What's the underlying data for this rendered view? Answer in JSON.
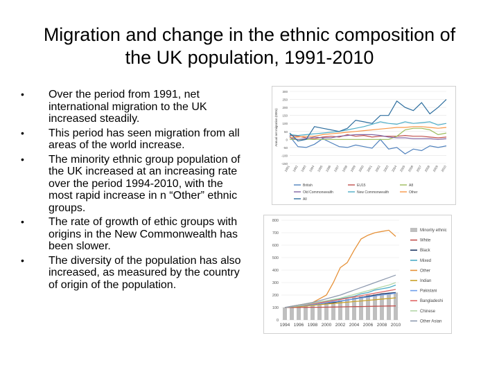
{
  "slide": {
    "title_line1": "Migration and change in the ethnic composition of",
    "title_line2": "the UK population, 1991-2010",
    "bullets": [
      "Over the period from 1991, net international migration to the UK increased steadily.",
      "This period has seen migration from all areas of the world increase.",
      "The minority ethnic group population of the UK increased at an increasing rate over the period 1994-2010, with the most rapid increase in n “Other” ethnic groups.",
      "The rate of growth of ethic groups with origins in the New Commonwealth has been slower.",
      "The diversity of the population has also increased, as measured by the country of origin of the population."
    ],
    "bullet_symbol": "•"
  },
  "chart_data": [
    {
      "type": "line",
      "title": "",
      "xlabel": "",
      "ylabel": "Annual net migration (000s)",
      "x": [
        "1991",
        "1992",
        "1993",
        "1994",
        "1995",
        "1996",
        "1997",
        "1998",
        "1999",
        "2000",
        "2001",
        "2002",
        "2003",
        "2004",
        "2005",
        "2006",
        "2007",
        "2008",
        "2009",
        "2010"
      ],
      "yticks": [
        "300",
        "250",
        "200",
        "150",
        "100",
        "50",
        "0",
        "-50",
        "-100",
        "-150"
      ],
      "ylim": [
        -150,
        300
      ],
      "grid": "horizontal",
      "legend_position": "bottom",
      "series": [
        {
          "name": "British",
          "color": "#4f81bd",
          "values": [
            20,
            -45,
            -50,
            -30,
            5,
            -20,
            -45,
            -50,
            -35,
            -45,
            -55,
            0,
            -60,
            -50,
            -90,
            -60,
            -70,
            -40,
            -50,
            -40
          ]
        },
        {
          "name": "EU15",
          "color": "#c0504d",
          "values": [
            25,
            20,
            10,
            5,
            15,
            20,
            15,
            30,
            20,
            25,
            15,
            20,
            20,
            20,
            25,
            20,
            20,
            15,
            10,
            15
          ]
        },
        {
          "name": "A8",
          "color": "#9bbb59",
          "values": [
            0,
            0,
            0,
            0,
            0,
            0,
            0,
            0,
            0,
            0,
            0,
            0,
            0,
            20,
            60,
            70,
            70,
            60,
            30,
            40
          ]
        },
        {
          "name": "Old Commonwealth",
          "color": "#8064a2",
          "values": [
            10,
            0,
            5,
            15,
            10,
            10,
            20,
            25,
            30,
            30,
            30,
            25,
            15,
            10,
            10,
            5,
            5,
            5,
            0,
            5
          ]
        },
        {
          "name": "New Commonwealth",
          "color": "#4bacc6",
          "values": [
            30,
            25,
            30,
            35,
            40,
            45,
            50,
            60,
            70,
            80,
            95,
            110,
            100,
            95,
            110,
            100,
            105,
            110,
            90,
            100
          ]
        },
        {
          "name": "Other",
          "color": "#f79646",
          "values": [
            10,
            15,
            20,
            20,
            30,
            35,
            40,
            45,
            50,
            55,
            60,
            65,
            70,
            75,
            75,
            80,
            80,
            75,
            70,
            75
          ]
        },
        {
          "name": "All",
          "color": "#2c6d9e",
          "values": [
            40,
            -10,
            0,
            80,
            70,
            60,
            50,
            70,
            120,
            110,
            100,
            150,
            150,
            240,
            200,
            180,
            230,
            160,
            200,
            250
          ]
        }
      ]
    },
    {
      "type": "line",
      "title": "",
      "xlabel": "",
      "ylabel": "",
      "x": [
        "1994",
        "1995",
        "1996",
        "1997",
        "1998",
        "1999",
        "2000",
        "2001",
        "2002",
        "2003",
        "2004",
        "2005",
        "2006",
        "2007",
        "2008",
        "2009",
        "2010"
      ],
      "xticks": [
        "1994",
        "1996",
        "1998",
        "2000",
        "2002",
        "2004",
        "2006",
        "2008",
        "2010"
      ],
      "yticks": [
        "800",
        "700",
        "600",
        "500",
        "400",
        "300",
        "200",
        "100",
        "0"
      ],
      "ylim": [
        0,
        800
      ],
      "grid": "horizontal",
      "legend_position": "right",
      "bar_series": {
        "name": "Minority ethnic",
        "color": "#bfbfbf",
        "values": [
          100,
          105,
          110,
          115,
          125,
          130,
          140,
          150,
          160,
          170,
          180,
          190,
          200,
          205,
          210,
          215,
          220
        ]
      },
      "series": [
        {
          "name": "White",
          "color": "#c0504d",
          "values": [
            100,
            100,
            101,
            101,
            102,
            102,
            103,
            104,
            105,
            106,
            107,
            108,
            109,
            110,
            111,
            112,
            113
          ]
        },
        {
          "name": "Black",
          "color": "#1f3864",
          "values": [
            100,
            105,
            110,
            115,
            120,
            130,
            135,
            140,
            150,
            160,
            170,
            180,
            190,
            200,
            210,
            215,
            220
          ]
        },
        {
          "name": "Mixed",
          "color": "#4bacc6",
          "values": [
            100,
            110,
            115,
            120,
            130,
            140,
            150,
            160,
            170,
            180,
            190,
            210,
            220,
            240,
            250,
            260,
            280
          ]
        },
        {
          "name": "Other",
          "color": "#e69138",
          "values": [
            100,
            110,
            120,
            130,
            140,
            170,
            200,
            300,
            420,
            460,
            560,
            650,
            680,
            700,
            710,
            720,
            670
          ]
        },
        {
          "name": "Indian",
          "color": "#c9a227",
          "values": [
            100,
            105,
            108,
            112,
            118,
            122,
            128,
            132,
            138,
            142,
            148,
            152,
            158,
            162,
            168,
            172,
            178
          ]
        },
        {
          "name": "Pakistani",
          "color": "#6d9eeb",
          "values": [
            100,
            106,
            112,
            118,
            124,
            130,
            138,
            146,
            152,
            160,
            168,
            176,
            184,
            192,
            200,
            208,
            215
          ]
        },
        {
          "name": "Bangladeshi",
          "color": "#e06666",
          "values": [
            100,
            108,
            115,
            122,
            130,
            138,
            146,
            155,
            165,
            175,
            185,
            195,
            205,
            215,
            225,
            235,
            245
          ]
        },
        {
          "name": "Chinese",
          "color": "#b4d7a8",
          "values": [
            100,
            108,
            115,
            125,
            135,
            145,
            155,
            165,
            175,
            190,
            205,
            220,
            235,
            250,
            265,
            280,
            300
          ]
        },
        {
          "name": "Other Asian",
          "color": "#8e9aaf",
          "values": [
            100,
            110,
            120,
            130,
            140,
            155,
            170,
            185,
            200,
            220,
            240,
            260,
            280,
            300,
            320,
            340,
            360
          ]
        }
      ]
    }
  ]
}
